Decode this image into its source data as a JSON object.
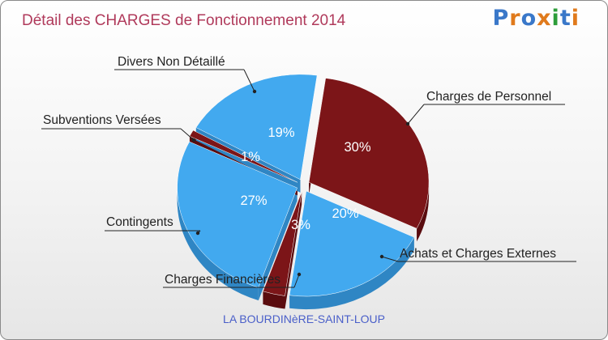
{
  "header": {
    "title": "Détail des CHARGES de Fonctionnement 2014",
    "logo": "Proxiti",
    "logo_letters": [
      {
        "ch": "P",
        "color": "#3a78c9"
      },
      {
        "ch": "r",
        "color": "#e07a1c"
      },
      {
        "ch": "o",
        "color": "#3a78c9"
      },
      {
        "ch": "x",
        "color": "#e07a1c"
      },
      {
        "ch": "i",
        "color": "#2d9d3a"
      },
      {
        "ch": "t",
        "color": "#3a78c9"
      },
      {
        "ch": "i",
        "color": "#e07a1c"
      }
    ]
  },
  "footer": {
    "town": "LA BOURDINèRE-SAINT-LOUP"
  },
  "colors": {
    "dark": "#7c1518",
    "light": "#42a9ef",
    "title": "#b03a5b"
  },
  "chart_data": {
    "type": "pie",
    "title": "Détail des CHARGES de Fonctionnement 2014",
    "slices": [
      {
        "name": "Charges de Personnel",
        "value": 30,
        "label": "30%",
        "color": "dark"
      },
      {
        "name": "Achats et Charges Externes",
        "value": 20,
        "label": "20%",
        "color": "light"
      },
      {
        "name": "Charges Financières",
        "value": 3,
        "label": "3%",
        "color": "dark"
      },
      {
        "name": "Contingents",
        "value": 27,
        "label": "27%",
        "color": "light"
      },
      {
        "name": "Subventions Versées",
        "value": 1,
        "label": "1%",
        "color": "dark"
      },
      {
        "name": "Divers Non Détaillé",
        "value": 19,
        "label": "19%",
        "color": "light"
      }
    ]
  }
}
